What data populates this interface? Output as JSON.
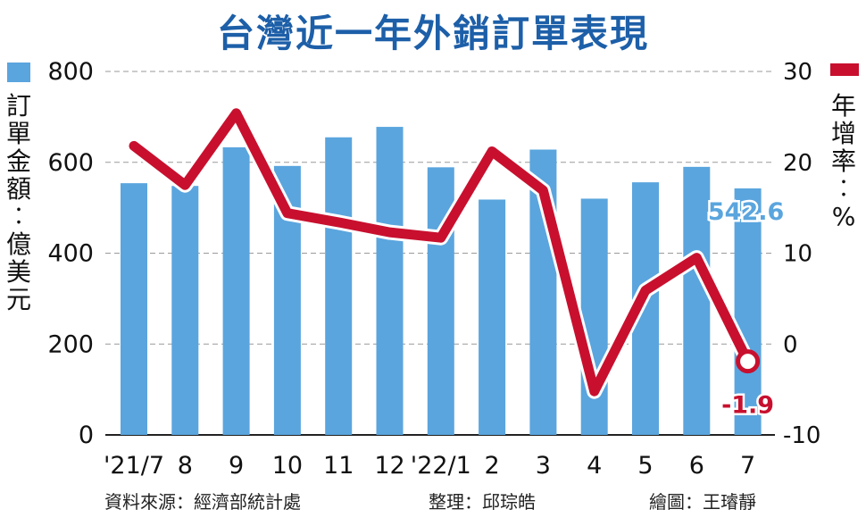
{
  "title": "台灣近一年外銷訂單表現",
  "colors": {
    "bar": "#5aa5de",
    "line": "#c8102e",
    "title": "#1d5fa8"
  },
  "legend": {
    "left_label": "訂單金額：億美元",
    "right_label": "年增率：%",
    "left_swatch": "bar",
    "right_swatch": "line"
  },
  "chart_data": {
    "type": "bar+line",
    "title": "台灣近一年外銷訂單表現",
    "categories": [
      "'21/7",
      "8",
      "9",
      "10",
      "11",
      "12",
      "'22/1",
      "2",
      "3",
      "4",
      "5",
      "6",
      "7"
    ],
    "series": [
      {
        "name": "訂單金額：億美元",
        "type": "bar",
        "axis": "left",
        "values": [
          554,
          548,
          633,
          592,
          655,
          678,
          589,
          518,
          628,
          520,
          556,
          590,
          542.6
        ]
      },
      {
        "name": "年增率：%",
        "type": "line",
        "axis": "right",
        "values": [
          21.8,
          17.5,
          25.4,
          14.4,
          13.4,
          12.3,
          11.7,
          21.2,
          16.9,
          -5.2,
          5.9,
          9.5,
          -1.9
        ]
      }
    ],
    "y_left": {
      "range": [
        0,
        800
      ],
      "ticks": [
        "0",
        "200",
        "400",
        "600",
        "800"
      ]
    },
    "y_right": {
      "range": [
        -10,
        30
      ],
      "ticks": [
        "-10",
        "0",
        "10",
        "20",
        "30"
      ]
    },
    "grid": "dashed horizontal",
    "annotations": [
      {
        "series": "bar",
        "index": 12,
        "text": "542.6"
      },
      {
        "series": "line",
        "index": 12,
        "text": "-1.9"
      }
    ]
  },
  "footer": {
    "source": "資料來源：經濟部統計處",
    "compiler": "整理：邱琮皓",
    "illustrator": "繪圖：王璿靜"
  }
}
